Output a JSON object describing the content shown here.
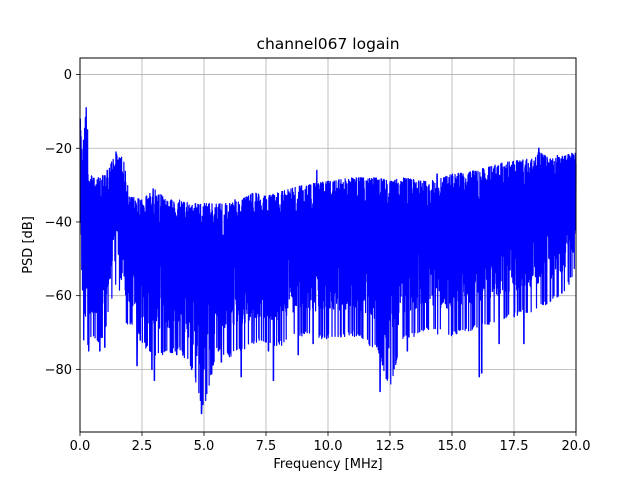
{
  "chart_data": {
    "type": "line",
    "title": "channel067 logain",
    "xlabel": "Frequency [MHz]",
    "ylabel": "PSD [dB]",
    "xlim": [
      0,
      20
    ],
    "ylim": [
      -97,
      4.5
    ],
    "xticks": [
      0,
      2.5,
      5,
      7.5,
      10,
      12.5,
      15,
      17.5,
      20
    ],
    "xtick_labels": [
      "0.0",
      "2.5",
      "5.0",
      "7.5",
      "10.0",
      "12.5",
      "15.0",
      "17.5",
      "20.0"
    ],
    "yticks": [
      0,
      -20,
      -40,
      -60,
      -80
    ],
    "ytick_labels": [
      "0",
      "−20",
      "−40",
      "−60",
      "−80"
    ],
    "grid": true,
    "series": [
      {
        "color": "#0000ff",
        "x": [
          0.0,
          0.1,
          0.2,
          0.3,
          0.5,
          0.75,
          1.0,
          1.25,
          1.5,
          1.75,
          2.0,
          2.5,
          3.0,
          3.5,
          4.0,
          4.5,
          5.0,
          5.5,
          6.0,
          6.5,
          7.0,
          7.5,
          8.0,
          8.5,
          9.0,
          10.0,
          11.0,
          12.0,
          12.5,
          13.0,
          14.0,
          15.0,
          16.0,
          17.0,
          18.0,
          18.5,
          19.0,
          19.5,
          20.0
        ],
        "upper": [
          -10,
          -22,
          -9,
          -25,
          -28,
          -28,
          -27,
          -24,
          -21,
          -23,
          -33,
          -34,
          -31,
          -34,
          -34,
          -35,
          -35,
          -35,
          -35,
          -34,
          -32,
          -33,
          -32,
          -31,
          -30,
          -29,
          -28,
          -28,
          -29,
          -28,
          -29,
          -27,
          -26,
          -24,
          -23,
          -21,
          -23,
          -22,
          -21
        ],
        "lower": [
          -48,
          -68,
          -65,
          -74,
          -72,
          -74,
          -70,
          -62,
          -56,
          -67,
          -68,
          -73,
          -77,
          -76,
          -75,
          -80,
          -92,
          -75,
          -77,
          -75,
          -73,
          -73,
          -74,
          -72,
          -71,
          -72,
          -71,
          -75,
          -86,
          -72,
          -70,
          -71,
          -69,
          -67,
          -65,
          -64,
          -62,
          -60,
          -53
        ],
        "dips": [
          [
            0.15,
            -72
          ],
          [
            0.35,
            -75
          ],
          [
            0.8,
            -75
          ],
          [
            1.0,
            -74
          ],
          [
            2.3,
            -79
          ],
          [
            2.9,
            -80
          ],
          [
            3.0,
            -83
          ],
          [
            3.9,
            -76
          ],
          [
            4.5,
            -80
          ],
          [
            4.9,
            -92
          ],
          [
            5.7,
            -78
          ],
          [
            6.5,
            -82
          ],
          [
            7.6,
            -75
          ],
          [
            7.8,
            -83
          ],
          [
            8.8,
            -76
          ],
          [
            9.4,
            -73
          ],
          [
            12.1,
            -86
          ],
          [
            13.2,
            -75
          ],
          [
            16.1,
            -82
          ],
          [
            16.2,
            -81
          ],
          [
            16.9,
            -73
          ],
          [
            17.9,
            -73
          ]
        ],
        "spikes": [
          [
            0.25,
            -9
          ],
          [
            0.3,
            -15
          ],
          [
            1.45,
            -21
          ],
          [
            2.95,
            -31
          ],
          [
            6.25,
            -34
          ],
          [
            9.55,
            -26
          ],
          [
            14.4,
            -27
          ],
          [
            18.5,
            -20
          ],
          [
            19.25,
            -22
          ]
        ]
      }
    ]
  }
}
